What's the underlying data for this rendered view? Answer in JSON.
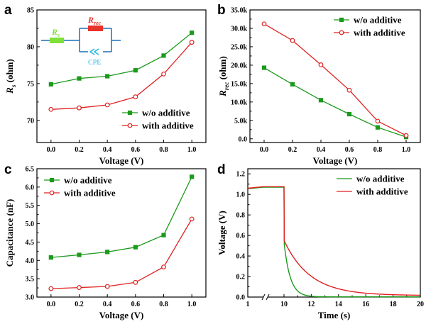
{
  "colors": {
    "green": "#1a9a1a",
    "red": "#e02020",
    "circuit_green": "#7fe03a",
    "circuit_red": "#e8322a",
    "circuit_line": "#1f6fb8",
    "cpe": "#27b5e8"
  },
  "chart_data": [
    {
      "panel": "a",
      "type": "line",
      "xlabel": "Voltage (V)",
      "ylabel_main": "R",
      "ylabel_sub": "s",
      "ylabel_unit": " (ohm)",
      "xlim": [
        -0.1,
        1.1
      ],
      "ylim": [
        67,
        85
      ],
      "xticks": [
        0.0,
        0.2,
        0.4,
        0.6,
        0.8,
        1.0
      ],
      "xtick_labels": [
        "0.0",
        "0.2",
        "0.4",
        "0.6",
        "0.8",
        "1.0"
      ],
      "yticks": [
        70,
        75,
        80,
        85
      ],
      "ytick_labels": [
        "70",
        "75",
        "80",
        "85"
      ],
      "legend_position": "bottom-right",
      "x": [
        0.0,
        0.2,
        0.4,
        0.6,
        0.8,
        1.0
      ],
      "series": [
        {
          "name": "w/o additive",
          "color": "#1a9a1a",
          "marker": "square",
          "values": [
            74.9,
            75.7,
            76.0,
            76.8,
            78.8,
            81.9
          ]
        },
        {
          "name": "with additive",
          "color": "#e02020",
          "marker": "circle",
          "values": [
            71.5,
            71.7,
            72.1,
            73.2,
            76.3,
            80.6
          ]
        }
      ],
      "inset": {
        "rs_main": "R",
        "rs_sub": "s",
        "rrec_main": "R",
        "rrec_sub": "rec",
        "cpe_label": "CPE"
      }
    },
    {
      "panel": "b",
      "type": "line",
      "xlabel": "Voltage (V)",
      "ylabel_main": "R",
      "ylabel_sub": "rec",
      "ylabel_unit": " (ohm)",
      "xlim": [
        -0.1,
        1.1
      ],
      "ylim": [
        -1000,
        35000
      ],
      "xticks": [
        0.0,
        0.2,
        0.4,
        0.6,
        0.8,
        1.0
      ],
      "xtick_labels": [
        "0.0",
        "0.2",
        "0.4",
        "0.6",
        "0.8",
        "1.0"
      ],
      "yticks": [
        0,
        5000,
        10000,
        15000,
        20000,
        25000,
        30000,
        35000
      ],
      "ytick_labels": [
        "0.0",
        "5.0k",
        "10.0k",
        "15.0k",
        "20.0k",
        "25.0k",
        "30.0k",
        "35.0k"
      ],
      "legend_position": "top-right",
      "x": [
        0.0,
        0.2,
        0.4,
        0.6,
        0.8,
        1.0
      ],
      "series": [
        {
          "name": "w/o additive",
          "color": "#1a9a1a",
          "marker": "square",
          "values": [
            19300,
            14800,
            10500,
            6700,
            3100,
            500
          ]
        },
        {
          "name": "with additive",
          "color": "#e02020",
          "marker": "circle",
          "values": [
            31200,
            26700,
            20100,
            13200,
            4800,
            900
          ]
        }
      ]
    },
    {
      "panel": "c",
      "type": "line",
      "xlabel": "Voltage (V)",
      "ylabel_main": "Capacitance (nF)",
      "ylabel_sub": "",
      "ylabel_unit": "",
      "xlim": [
        -0.1,
        1.1
      ],
      "ylim": [
        3.0,
        6.5
      ],
      "xticks": [
        0.0,
        0.2,
        0.4,
        0.6,
        0.8,
        1.0
      ],
      "xtick_labels": [
        "0.0",
        "0.2",
        "0.4",
        "0.6",
        "0.8",
        "1.0"
      ],
      "yticks": [
        3.0,
        3.5,
        4.0,
        4.5,
        5.0,
        5.5,
        6.0,
        6.5
      ],
      "ytick_labels": [
        "3.0",
        "3.5",
        "4.0",
        "4.5",
        "5.0",
        "5.5",
        "6.0",
        "6.5"
      ],
      "legend_position": "top-left",
      "x": [
        0.0,
        0.2,
        0.4,
        0.6,
        0.8,
        1.0
      ],
      "series": [
        {
          "name": "w/o additive",
          "color": "#1a9a1a",
          "marker": "square",
          "values": [
            4.08,
            4.15,
            4.23,
            4.36,
            4.69,
            6.28
          ]
        },
        {
          "name": "with additive",
          "color": "#e02020",
          "marker": "circle",
          "values": [
            3.23,
            3.26,
            3.29,
            3.4,
            3.82,
            5.13
          ]
        }
      ]
    },
    {
      "panel": "d",
      "type": "line",
      "xlabel": "Time (s)",
      "ylabel_main": "Voltage (V)",
      "ylabel_sub": "",
      "ylabel_unit": "",
      "ylim": [
        0.0,
        1.25
      ],
      "xtick_labels": [
        "1",
        "10",
        "12",
        "14",
        "16",
        "18",
        "20"
      ],
      "xtick_values": [
        1,
        10,
        12,
        14,
        16,
        18,
        20
      ],
      "yticks": [
        0.0,
        0.2,
        0.4,
        0.6,
        0.8,
        1.0,
        1.2
      ],
      "ytick_labels": [
        "0.0",
        "0.2",
        "0.4",
        "0.6",
        "0.8",
        "1.0",
        "1.2"
      ],
      "axis_break": true,
      "legend_position": "top-right",
      "series": [
        {
          "name": "w/o additive",
          "color": "#1a9a1a",
          "plateau": 1.07,
          "tau": 0.45
        },
        {
          "name": "with additive",
          "color": "#e02020",
          "plateau": 1.075,
          "tau": 1.9
        }
      ]
    }
  ]
}
